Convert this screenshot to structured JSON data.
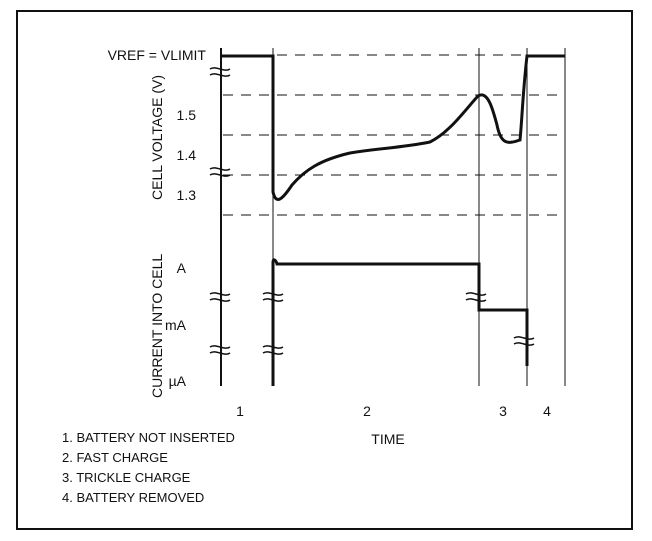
{
  "figure": {
    "vref_label": "VREF = VLIMIT",
    "voltage_axis_label": "CELL VOLTAGE (V)",
    "current_axis_label": "CURRENT INTO CELL",
    "x_axis_label": "TIME",
    "voltage_ticks": [
      "1.5",
      "1.4",
      "1.3"
    ],
    "current_ticks": [
      "A",
      "mA",
      "µA"
    ],
    "phase_labels": [
      "1",
      "2",
      "3",
      "4"
    ],
    "legend": [
      "1. BATTERY NOT INSERTED",
      "2. FAST CHARGE",
      "3. TRICKLE CHARGE",
      "4. BATTERY REMOVED"
    ]
  }
}
